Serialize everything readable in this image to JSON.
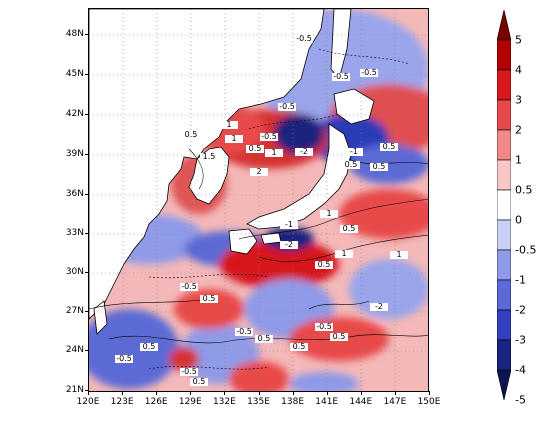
{
  "map": {
    "latitude_labels": [
      "48N",
      "45N",
      "42N",
      "39N",
      "36N",
      "33N",
      "30N",
      "27N",
      "24N",
      "21N"
    ],
    "longitude_labels": [
      "120E",
      "123E",
      "126E",
      "129E",
      "132E",
      "135E",
      "138E",
      "141E",
      "144E",
      "147E",
      "150E"
    ],
    "contour_labels": [
      "-0.5",
      "-0.5",
      "-0.5",
      "-0.5",
      "-0.5",
      "0.5",
      "1",
      "1",
      "0.5",
      "1",
      "2",
      "-2",
      "-1",
      "1.5",
      "0.5",
      "0.5",
      "0.5",
      "-2",
      "1",
      "0.5",
      "1",
      "-1",
      "1",
      "0.5",
      "-0.5",
      "0.5",
      "-0.5",
      "0.5",
      "-0.5",
      "0.5",
      "-0.5",
      "0.5",
      "0.5",
      "-2",
      "0.5",
      "-0.5"
    ],
    "land_color": "#ffffff",
    "coastline_color": "#000000"
  },
  "colorbar": {
    "labels": [
      "5",
      "4",
      "3",
      "2",
      "1",
      "0.5",
      "0",
      "-0.5",
      "-1",
      "-2",
      "-3",
      "-4",
      "-5"
    ],
    "colors": [
      "#7a0000",
      "#b30000",
      "#d7191c",
      "#e8494a",
      "#f08a8a",
      "#f8c6c6",
      "#ffffff",
      "#c9cff5",
      "#8f9ae8",
      "#5b6ad6",
      "#3040c0",
      "#1a237e",
      "#0d1452"
    ]
  }
}
